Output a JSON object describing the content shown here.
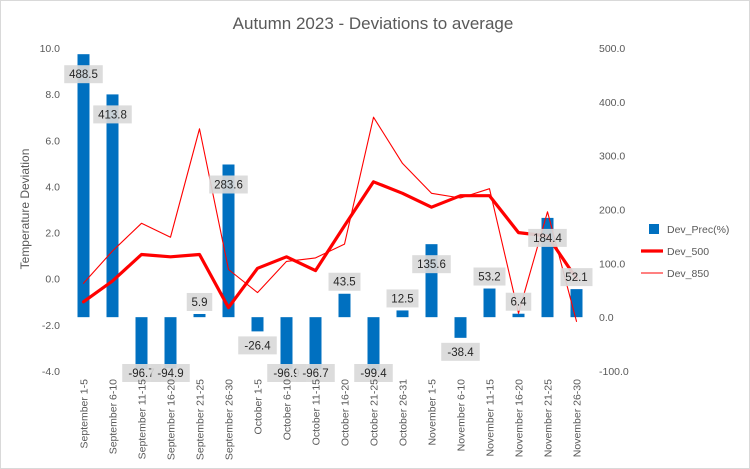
{
  "chart_data": {
    "type": "bar+line",
    "title": "Autumn 2023 - Deviations to average",
    "ylabel": "Temperature Deviation",
    "ylim": [
      -4.0,
      10.0
    ],
    "y_ticks": [
      "-4.0",
      "-2.0",
      "0.0",
      "2.0",
      "4.0",
      "6.0",
      "8.0",
      "10.0"
    ],
    "y2lim": [
      -100.0,
      500.0
    ],
    "y2_ticks": [
      "-100.0",
      "0.0",
      "100.0",
      "200.0",
      "300.0",
      "400.0",
      "500.0"
    ],
    "legend_position": "right",
    "categories": [
      "September 1-5",
      "September 6-10",
      "September 11-15",
      "September 16-20",
      "September 21-25",
      "September 26-30",
      "October 1-5",
      "October 6-10",
      "October 11-15",
      "October 16-20",
      "October 21-25",
      "October 26-31",
      "November 1-5",
      "November 6-10",
      "November 11-15",
      "November 16-20",
      "November 21-25",
      "November 26-30"
    ],
    "series": [
      {
        "name": "Dev_Prec(%)",
        "type": "bar",
        "axis": "secondary",
        "color": "#0070c0",
        "values": [
          488.5,
          413.8,
          -96.7,
          -94.9,
          5.9,
          283.6,
          -26.4,
          -96.9,
          -96.7,
          43.5,
          -99.4,
          12.5,
          135.6,
          -38.4,
          53.2,
          6.4,
          184.4,
          52.1
        ],
        "labels": [
          "488.5",
          "413.8",
          "-96.7",
          "-94.9",
          "5.9",
          "283.6",
          "-26.4",
          "-96.9",
          "-96.7",
          "43.5",
          "-99.4",
          "12.5",
          "135.6",
          "-38.4",
          "53.2",
          "6.4",
          "184.4",
          "52.1"
        ]
      },
      {
        "name": "Dev_500",
        "type": "line",
        "axis": "primary",
        "color": "#ff0000",
        "values": [
          -1.0,
          -0.1,
          1.05,
          0.95,
          1.05,
          -1.25,
          0.45,
          0.95,
          0.35,
          2.3,
          4.2,
          3.7,
          3.1,
          3.6,
          3.6,
          2.0,
          1.85,
          0.0
        ]
      },
      {
        "name": "Dev_850",
        "type": "line",
        "axis": "primary",
        "color": "#ff0000",
        "values": [
          -0.2,
          1.2,
          2.4,
          1.8,
          6.5,
          0.4,
          -0.6,
          0.75,
          0.9,
          1.5,
          7.0,
          5.0,
          3.7,
          3.5,
          3.9,
          -1.5,
          2.9,
          -1.85
        ]
      }
    ]
  }
}
